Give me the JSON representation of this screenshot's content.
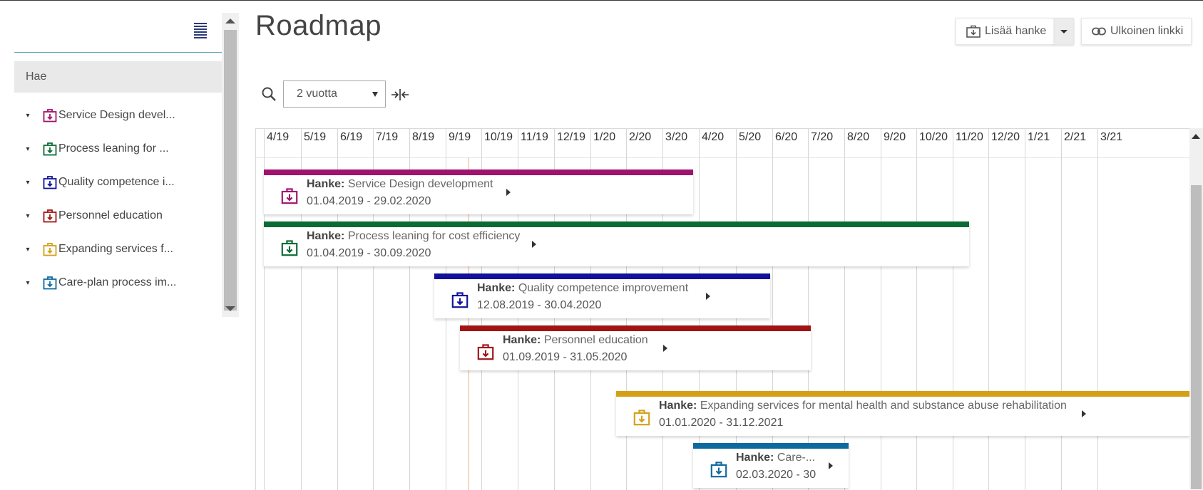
{
  "sidebar": {
    "search_placeholder": "Hae",
    "items": [
      {
        "label": "Service Design devel...",
        "color": "#a0126e"
      },
      {
        "label": "Process leaning for ...",
        "color": "#0b6b35"
      },
      {
        "label": "Quality competence i...",
        "color": "#12129a"
      },
      {
        "label": "Personnel education",
        "color": "#a01414"
      },
      {
        "label": "Expanding services f...",
        "color": "#d4a017"
      },
      {
        "label": "Care-plan process im...",
        "color": "#0e6a9e"
      }
    ]
  },
  "header": {
    "title": "Roadmap",
    "add_button_label": "Lisää hanke",
    "link_button_label": "Ulkoinen linkki"
  },
  "toolbar": {
    "range_value": "2 vuotta"
  },
  "timeline": {
    "months": [
      "4/19",
      "5/19",
      "6/19",
      "7/19",
      "8/19",
      "9/19",
      "10/19",
      "11/19",
      "12/19",
      "1/20",
      "2/20",
      "3/20",
      "4/20",
      "5/20",
      "6/20",
      "7/20",
      "8/20",
      "9/20",
      "10/20",
      "11/20",
      "12/20",
      "1/21",
      "2/21",
      "3/21"
    ],
    "projects": [
      {
        "prefix": "Hanke:",
        "name": "Service Design development",
        "dates": "01.04.2019  - 29.02.2020",
        "color": "#a0126e"
      },
      {
        "prefix": "Hanke:",
        "name": "Process leaning for cost efficiency",
        "dates": "01.04.2019  - 30.09.2020",
        "color": "#0b6b35"
      },
      {
        "prefix": "Hanke:",
        "name": "Quality competence improvement",
        "dates": "12.08.2019  - 30.04.2020",
        "color": "#12129a"
      },
      {
        "prefix": "Hanke:",
        "name": "Personnel education",
        "dates": "01.09.2019  - 31.05.2020",
        "color": "#a01414"
      },
      {
        "prefix": "Hanke:",
        "name": "Expanding services for mental health and substance abuse rehabilitation",
        "dates": "01.01.2020  - 31.12.2021",
        "color": "#d4a017"
      },
      {
        "prefix": "Hanke:",
        "name": "Care-...",
        "dates": "02.03.2020  - 30",
        "color": "#0e6a9e"
      }
    ]
  }
}
